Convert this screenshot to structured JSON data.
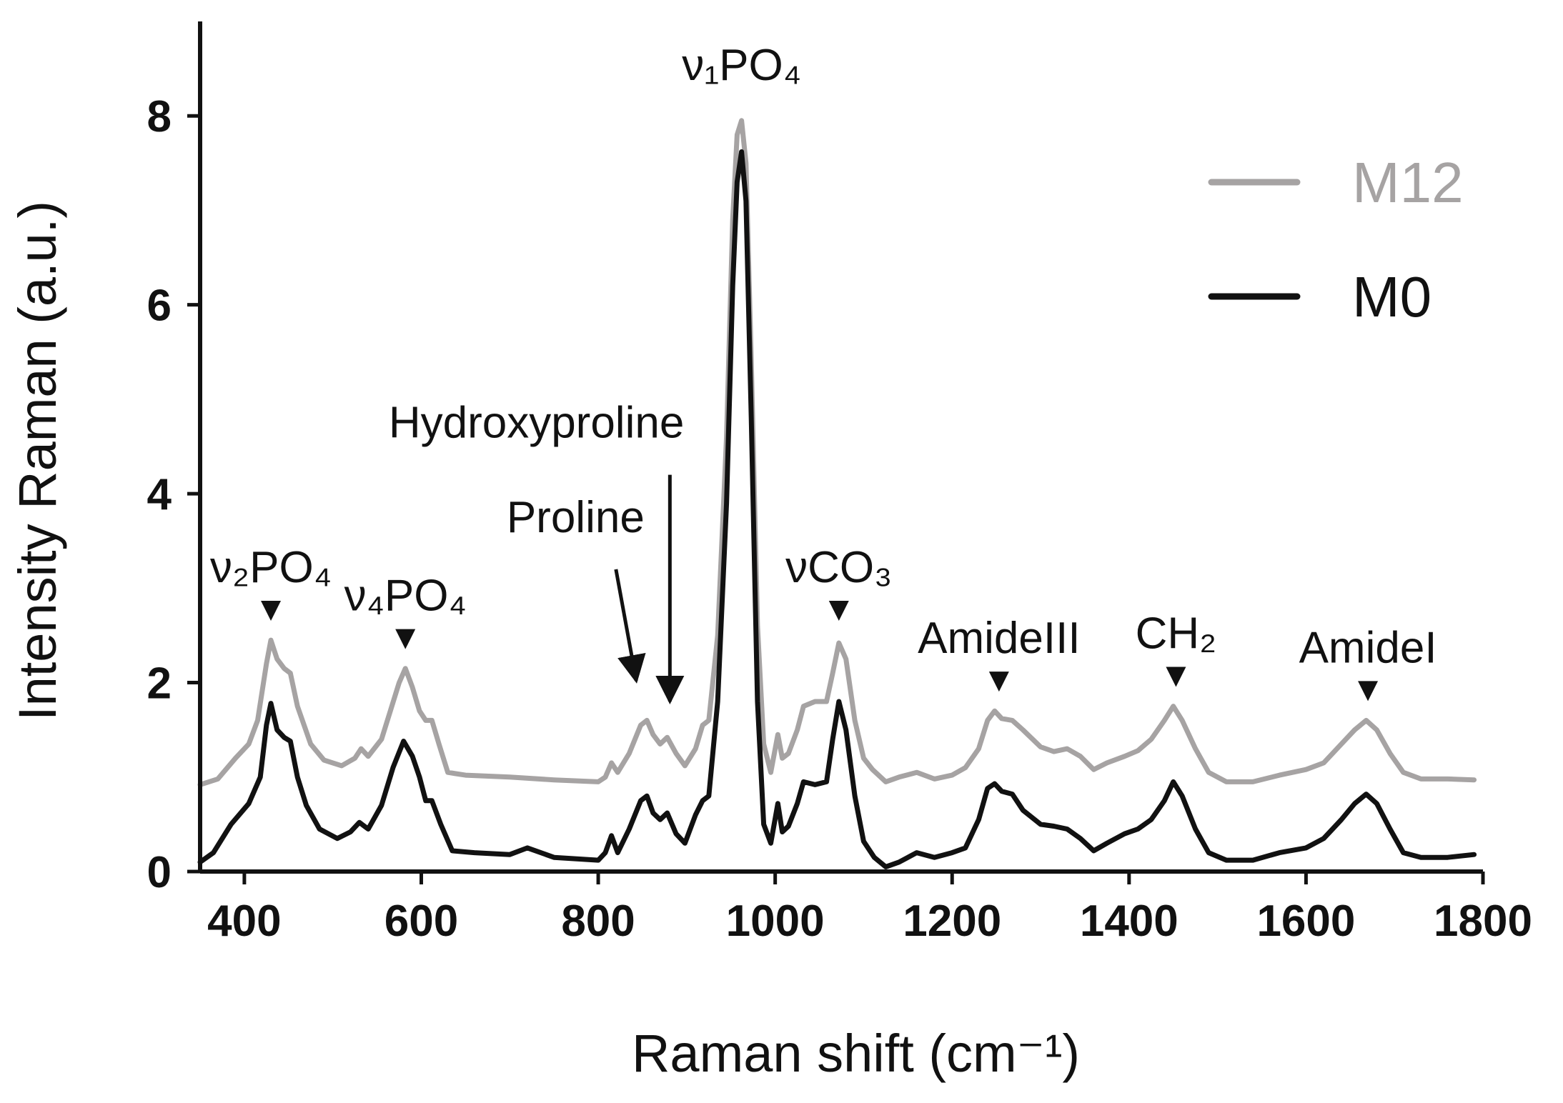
{
  "chart_data": {
    "type": "line",
    "title": "",
    "xlabel": "Raman shift (cm⁻¹)",
    "ylabel": "Intensity Raman (a.u.)",
    "xlim": [
      350,
      1800
    ],
    "ylim": [
      0,
      9
    ],
    "x_ticks": [
      400,
      600,
      800,
      1000,
      1200,
      1400,
      1600,
      1800
    ],
    "y_ticks": [
      0,
      2,
      4,
      6,
      8
    ],
    "grid": false,
    "legend_position": "top-right",
    "series": [
      {
        "name": "M12",
        "color": "#a6a3a3",
        "points": [
          [
            350,
            0.92
          ],
          [
            370,
            0.98
          ],
          [
            390,
            1.2
          ],
          [
            405,
            1.35
          ],
          [
            415,
            1.6
          ],
          [
            425,
            2.2
          ],
          [
            430,
            2.45
          ],
          [
            437,
            2.25
          ],
          [
            445,
            2.15
          ],
          [
            452,
            2.1
          ],
          [
            460,
            1.75
          ],
          [
            475,
            1.35
          ],
          [
            490,
            1.18
          ],
          [
            510,
            1.12
          ],
          [
            525,
            1.2
          ],
          [
            532,
            1.3
          ],
          [
            540,
            1.22
          ],
          [
            555,
            1.4
          ],
          [
            565,
            1.7
          ],
          [
            575,
            2.0
          ],
          [
            582,
            2.15
          ],
          [
            590,
            1.95
          ],
          [
            598,
            1.7
          ],
          [
            605,
            1.6
          ],
          [
            612,
            1.6
          ],
          [
            620,
            1.35
          ],
          [
            630,
            1.05
          ],
          [
            650,
            1.02
          ],
          [
            700,
            1.0
          ],
          [
            750,
            0.97
          ],
          [
            800,
            0.95
          ],
          [
            808,
            1.0
          ],
          [
            815,
            1.15
          ],
          [
            822,
            1.05
          ],
          [
            835,
            1.25
          ],
          [
            848,
            1.55
          ],
          [
            855,
            1.6
          ],
          [
            862,
            1.45
          ],
          [
            870,
            1.35
          ],
          [
            878,
            1.42
          ],
          [
            888,
            1.25
          ],
          [
            898,
            1.12
          ],
          [
            910,
            1.3
          ],
          [
            918,
            1.55
          ],
          [
            925,
            1.6
          ],
          [
            935,
            2.5
          ],
          [
            945,
            4.6
          ],
          [
            952,
            6.9
          ],
          [
            957,
            7.8
          ],
          [
            962,
            7.95
          ],
          [
            967,
            7.5
          ],
          [
            973,
            5.4
          ],
          [
            980,
            2.6
          ],
          [
            987,
            1.35
          ],
          [
            995,
            1.05
          ],
          [
            1003,
            1.45
          ],
          [
            1008,
            1.2
          ],
          [
            1015,
            1.25
          ],
          [
            1025,
            1.5
          ],
          [
            1032,
            1.75
          ],
          [
            1045,
            1.8
          ],
          [
            1058,
            1.8
          ],
          [
            1065,
            2.1
          ],
          [
            1072,
            2.42
          ],
          [
            1080,
            2.25
          ],
          [
            1090,
            1.6
          ],
          [
            1100,
            1.2
          ],
          [
            1110,
            1.08
          ],
          [
            1125,
            0.95
          ],
          [
            1140,
            1.0
          ],
          [
            1160,
            1.05
          ],
          [
            1180,
            0.98
          ],
          [
            1200,
            1.02
          ],
          [
            1215,
            1.1
          ],
          [
            1230,
            1.3
          ],
          [
            1240,
            1.6
          ],
          [
            1248,
            1.7
          ],
          [
            1256,
            1.62
          ],
          [
            1268,
            1.6
          ],
          [
            1280,
            1.5
          ],
          [
            1300,
            1.32
          ],
          [
            1315,
            1.27
          ],
          [
            1330,
            1.3
          ],
          [
            1345,
            1.22
          ],
          [
            1360,
            1.08
          ],
          [
            1375,
            1.15
          ],
          [
            1395,
            1.22
          ],
          [
            1410,
            1.28
          ],
          [
            1425,
            1.4
          ],
          [
            1440,
            1.6
          ],
          [
            1450,
            1.75
          ],
          [
            1460,
            1.6
          ],
          [
            1475,
            1.3
          ],
          [
            1490,
            1.05
          ],
          [
            1510,
            0.95
          ],
          [
            1540,
            0.95
          ],
          [
            1570,
            1.02
          ],
          [
            1600,
            1.08
          ],
          [
            1620,
            1.15
          ],
          [
            1640,
            1.35
          ],
          [
            1655,
            1.5
          ],
          [
            1668,
            1.6
          ],
          [
            1680,
            1.5
          ],
          [
            1695,
            1.25
          ],
          [
            1710,
            1.05
          ],
          [
            1730,
            0.98
          ],
          [
            1760,
            0.98
          ],
          [
            1790,
            0.97
          ]
        ]
      },
      {
        "name": "M0",
        "color": "#111111",
        "points": [
          [
            350,
            0.1
          ],
          [
            365,
            0.2
          ],
          [
            385,
            0.5
          ],
          [
            405,
            0.72
          ],
          [
            418,
            1.0
          ],
          [
            425,
            1.55
          ],
          [
            430,
            1.78
          ],
          [
            437,
            1.5
          ],
          [
            445,
            1.42
          ],
          [
            452,
            1.38
          ],
          [
            460,
            1.0
          ],
          [
            470,
            0.7
          ],
          [
            485,
            0.45
          ],
          [
            505,
            0.35
          ],
          [
            520,
            0.42
          ],
          [
            530,
            0.52
          ],
          [
            540,
            0.45
          ],
          [
            555,
            0.7
          ],
          [
            568,
            1.1
          ],
          [
            580,
            1.38
          ],
          [
            590,
            1.22
          ],
          [
            598,
            1.0
          ],
          [
            605,
            0.75
          ],
          [
            612,
            0.75
          ],
          [
            622,
            0.5
          ],
          [
            635,
            0.22
          ],
          [
            660,
            0.2
          ],
          [
            700,
            0.18
          ],
          [
            720,
            0.25
          ],
          [
            750,
            0.15
          ],
          [
            800,
            0.12
          ],
          [
            808,
            0.2
          ],
          [
            815,
            0.38
          ],
          [
            822,
            0.2
          ],
          [
            835,
            0.45
          ],
          [
            848,
            0.75
          ],
          [
            855,
            0.8
          ],
          [
            862,
            0.62
          ],
          [
            870,
            0.55
          ],
          [
            878,
            0.62
          ],
          [
            888,
            0.4
          ],
          [
            898,
            0.3
          ],
          [
            910,
            0.6
          ],
          [
            918,
            0.75
          ],
          [
            925,
            0.8
          ],
          [
            935,
            1.8
          ],
          [
            945,
            3.9
          ],
          [
            952,
            6.2
          ],
          [
            957,
            7.3
          ],
          [
            962,
            7.62
          ],
          [
            967,
            7.1
          ],
          [
            973,
            4.8
          ],
          [
            980,
            1.8
          ],
          [
            987,
            0.5
          ],
          [
            995,
            0.3
          ],
          [
            1003,
            0.72
          ],
          [
            1008,
            0.42
          ],
          [
            1015,
            0.48
          ],
          [
            1025,
            0.72
          ],
          [
            1032,
            0.95
          ],
          [
            1045,
            0.92
          ],
          [
            1058,
            0.95
          ],
          [
            1065,
            1.4
          ],
          [
            1072,
            1.8
          ],
          [
            1080,
            1.5
          ],
          [
            1090,
            0.8
          ],
          [
            1100,
            0.32
          ],
          [
            1112,
            0.15
          ],
          [
            1125,
            0.05
          ],
          [
            1140,
            0.1
          ],
          [
            1160,
            0.2
          ],
          [
            1180,
            0.15
          ],
          [
            1200,
            0.2
          ],
          [
            1215,
            0.25
          ],
          [
            1230,
            0.55
          ],
          [
            1240,
            0.88
          ],
          [
            1248,
            0.93
          ],
          [
            1256,
            0.85
          ],
          [
            1268,
            0.82
          ],
          [
            1280,
            0.65
          ],
          [
            1300,
            0.5
          ],
          [
            1315,
            0.48
          ],
          [
            1330,
            0.45
          ],
          [
            1345,
            0.35
          ],
          [
            1360,
            0.22
          ],
          [
            1375,
            0.3
          ],
          [
            1395,
            0.4
          ],
          [
            1410,
            0.45
          ],
          [
            1425,
            0.55
          ],
          [
            1440,
            0.75
          ],
          [
            1450,
            0.95
          ],
          [
            1460,
            0.8
          ],
          [
            1475,
            0.45
          ],
          [
            1490,
            0.2
          ],
          [
            1510,
            0.12
          ],
          [
            1540,
            0.12
          ],
          [
            1570,
            0.2
          ],
          [
            1600,
            0.25
          ],
          [
            1620,
            0.35
          ],
          [
            1640,
            0.55
          ],
          [
            1655,
            0.72
          ],
          [
            1668,
            0.82
          ],
          [
            1680,
            0.72
          ],
          [
            1695,
            0.45
          ],
          [
            1710,
            0.2
          ],
          [
            1730,
            0.15
          ],
          [
            1760,
            0.15
          ],
          [
            1790,
            0.18
          ]
        ]
      }
    ],
    "annotations": [
      {
        "text": "ν₂PO₄",
        "x": 430,
        "marker": "triangle",
        "marker_y": 2.7
      },
      {
        "text": "ν₄PO₄",
        "x": 582,
        "marker": "triangle",
        "marker_y": 2.4
      },
      {
        "text": "ν₁PO₄",
        "x": 962,
        "marker": "none"
      },
      {
        "text": "νCO₃",
        "x": 1072,
        "marker": "triangle",
        "marker_y": 2.7
      },
      {
        "text": "AmideIII",
        "x": 1253,
        "marker": "triangle",
        "marker_y": 1.95
      },
      {
        "text": "CH₂",
        "x": 1453,
        "marker": "triangle",
        "marker_y": 2.0
      },
      {
        "text": "AmideI",
        "x": 1670,
        "marker": "triangle",
        "marker_y": 1.85
      },
      {
        "text": "Proline",
        "x": 850,
        "marker": "arrow",
        "arrow_from": [
          820,
          3.2
        ],
        "arrow_to": [
          843,
          2.02
        ]
      },
      {
        "text": "Hydroxyproline",
        "x": 880,
        "marker": "arrow",
        "arrow_from": [
          881,
          4.2
        ],
        "arrow_to": [
          881,
          1.8
        ]
      }
    ]
  }
}
